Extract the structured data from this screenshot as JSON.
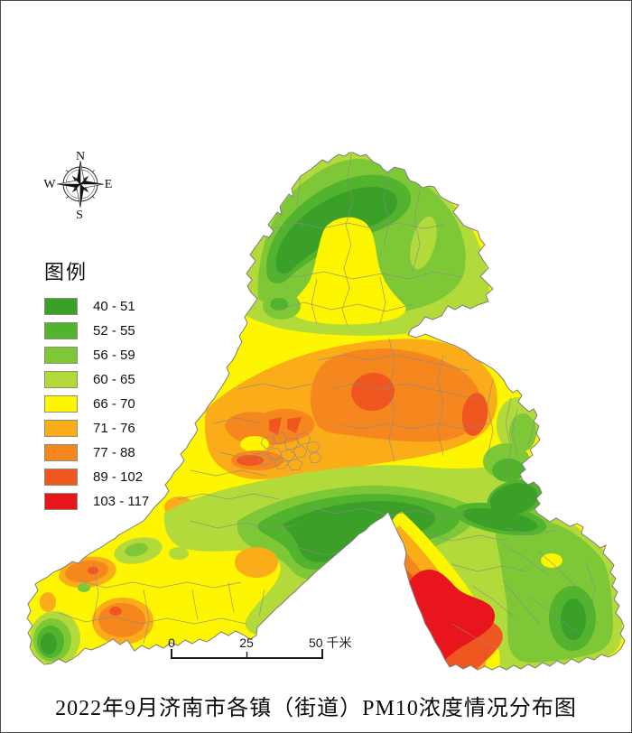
{
  "title": "2022年9月济南市各镇（街道）PM10浓度情况分布图",
  "compass": {
    "north": "N",
    "east": "E",
    "south": "S",
    "west": "W"
  },
  "legend": {
    "title": "图例",
    "items": [
      {
        "label": "40 - 51",
        "color": "#3aa028"
      },
      {
        "label": "52 - 55",
        "color": "#52b42e"
      },
      {
        "label": "56 - 59",
        "color": "#7ec837"
      },
      {
        "label": "60 - 65",
        "color": "#b2da3a"
      },
      {
        "label": "66 - 70",
        "color": "#fdf502"
      },
      {
        "label": "71 - 76",
        "color": "#fbac19"
      },
      {
        "label": "77 - 88",
        "color": "#f6871f"
      },
      {
        "label": "89 - 102",
        "color": "#f0561f"
      },
      {
        "label": "103 - 117",
        "color": "#e8151c"
      }
    ]
  },
  "scalebar": {
    "zero": "0",
    "mid": "25",
    "end": "50 千米"
  }
}
